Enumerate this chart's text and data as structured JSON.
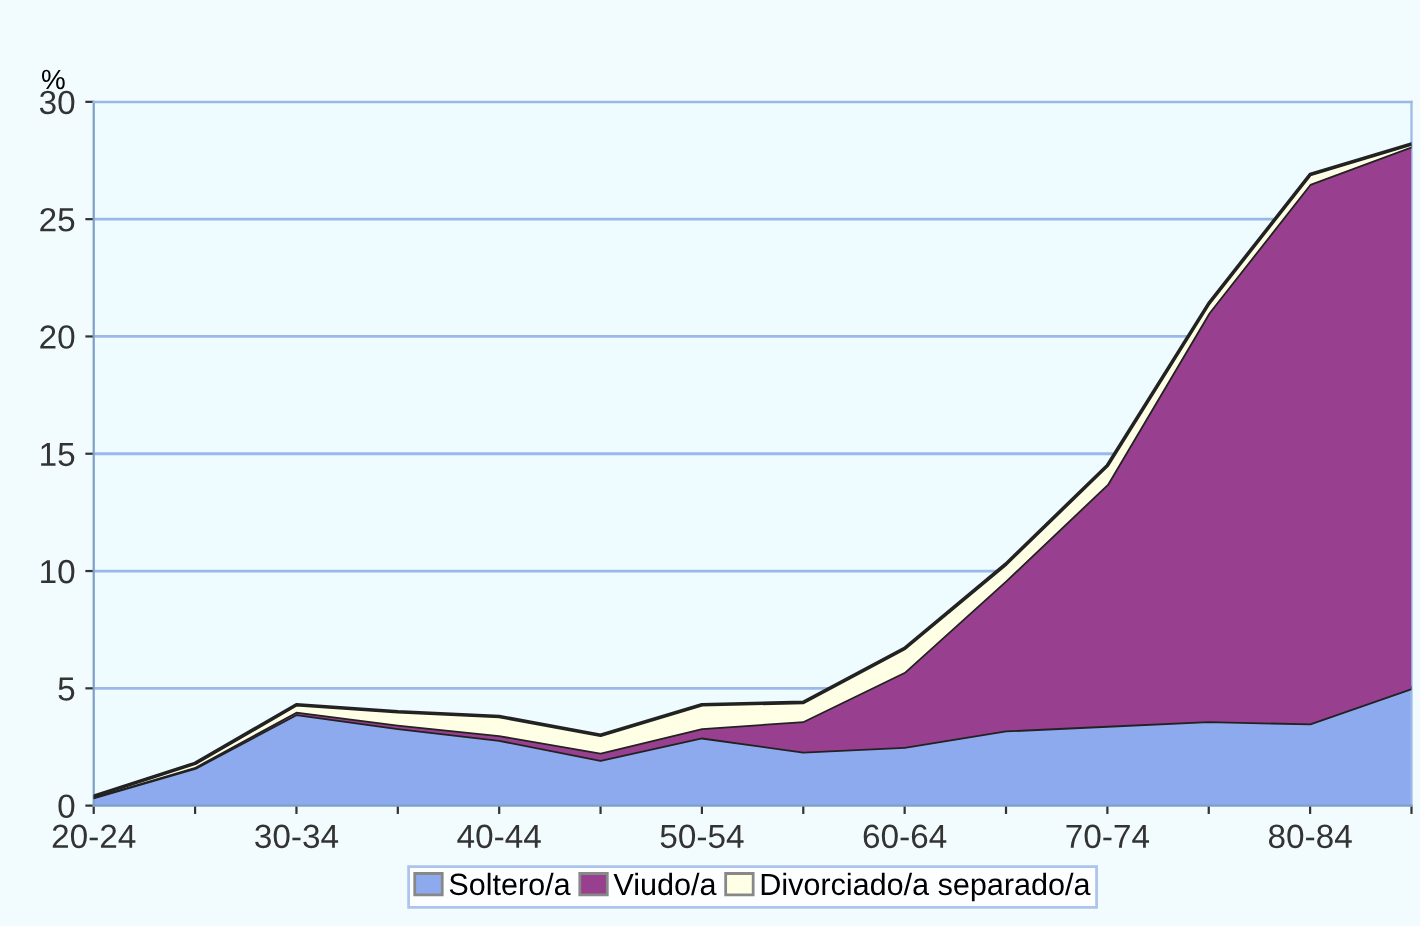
{
  "chart_data": {
    "type": "area",
    "stacked": true,
    "ylabel": "%",
    "categories": [
      "20-24",
      null,
      "30-34",
      null,
      "40-44",
      null,
      "50-54",
      null,
      "60-64",
      null,
      "70-74",
      null,
      "80-84",
      null
    ],
    "series": [
      {
        "name": "Soltero/a",
        "color": "#8eaaee",
        "values": [
          0.35,
          1.6,
          3.9,
          3.3,
          2.8,
          1.95,
          2.9,
          2.3,
          2.5,
          3.2,
          3.4,
          3.6,
          3.5,
          5.0
        ]
      },
      {
        "name": "Viudo/a",
        "color": "#993f8f",
        "values": [
          0.02,
          0.05,
          0.1,
          0.15,
          0.2,
          0.3,
          0.4,
          1.3,
          3.2,
          6.4,
          10.3,
          17.4,
          23.0,
          23.1
        ]
      },
      {
        "name": "Divorciado/a separado/a",
        "color": "#ffffe6",
        "values": [
          0.03,
          0.15,
          0.3,
          0.55,
          0.8,
          0.75,
          1.0,
          0.8,
          1.0,
          0.7,
          0.8,
          0.4,
          0.4,
          0.1
        ]
      }
    ],
    "ylim": [
      0,
      30
    ],
    "yticks": [
      0,
      5,
      10,
      15,
      20,
      25,
      30
    ],
    "grid": "y",
    "legend": "bottom"
  }
}
